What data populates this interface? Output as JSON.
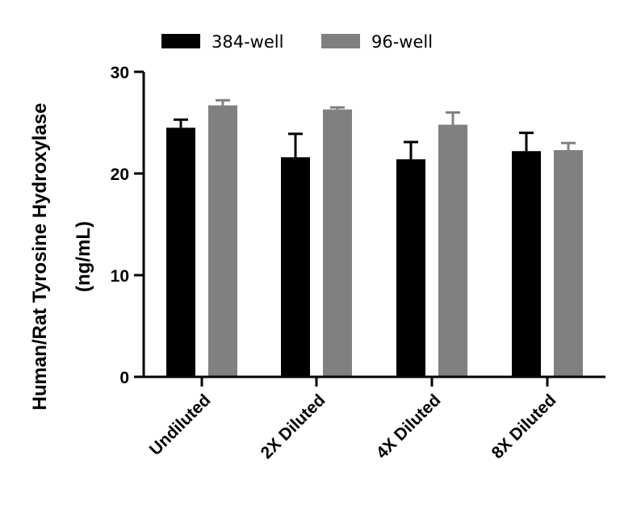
{
  "chart_data": {
    "type": "bar",
    "title": "",
    "xlabel": "",
    "ylabel_line1": "Human/Rat Tyrosine Hydroxylase",
    "ylabel_line2": "(ng/mL)",
    "categories": [
      "Undiluted",
      "2X Diluted",
      "4X Diluted",
      "8X Diluted"
    ],
    "ylim": [
      0,
      30
    ],
    "yticks": [
      0,
      10,
      20,
      30
    ],
    "series": [
      {
        "name": "384-well",
        "color": "#000000",
        "values": [
          24.5,
          21.6,
          21.4,
          22.2
        ],
        "errors": [
          0.8,
          2.3,
          1.7,
          1.8
        ]
      },
      {
        "name": "96-well",
        "color": "#808080",
        "values": [
          26.7,
          26.3,
          24.8,
          22.3
        ],
        "errors": [
          0.5,
          0.2,
          1.2,
          0.7
        ]
      }
    ],
    "legend_position": "top"
  }
}
